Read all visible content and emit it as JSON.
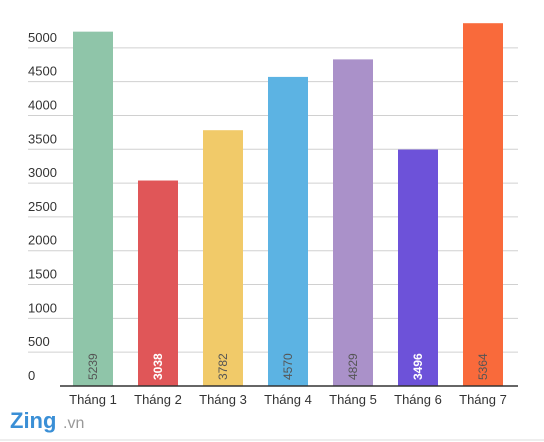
{
  "chart_data": {
    "type": "bar",
    "categories": [
      "Tháng 1",
      "Tháng 2",
      "Tháng 3",
      "Tháng 4",
      "Tháng 5",
      "Tháng 6",
      "Tháng 7"
    ],
    "values": [
      5239,
      3038,
      3782,
      4570,
      4829,
      3496,
      5364
    ],
    "colors": [
      "#8fc5a9",
      "#e05658",
      "#f1ca69",
      "#5cb3e3",
      "#aa91c9",
      "#6d52d9",
      "#f96a3b"
    ],
    "value_label_colors": [
      "#555555",
      "#ffffff",
      "#555555",
      "#555555",
      "#555555",
      "#ffffff",
      "#555555"
    ],
    "ylim": [
      0,
      5500
    ],
    "yticks": [
      0,
      500,
      1000,
      1500,
      2000,
      2500,
      3000,
      3500,
      4000,
      4500,
      5000
    ],
    "grid": true
  },
  "watermark": {
    "brand": "Zing",
    "domain": ".vn"
  }
}
